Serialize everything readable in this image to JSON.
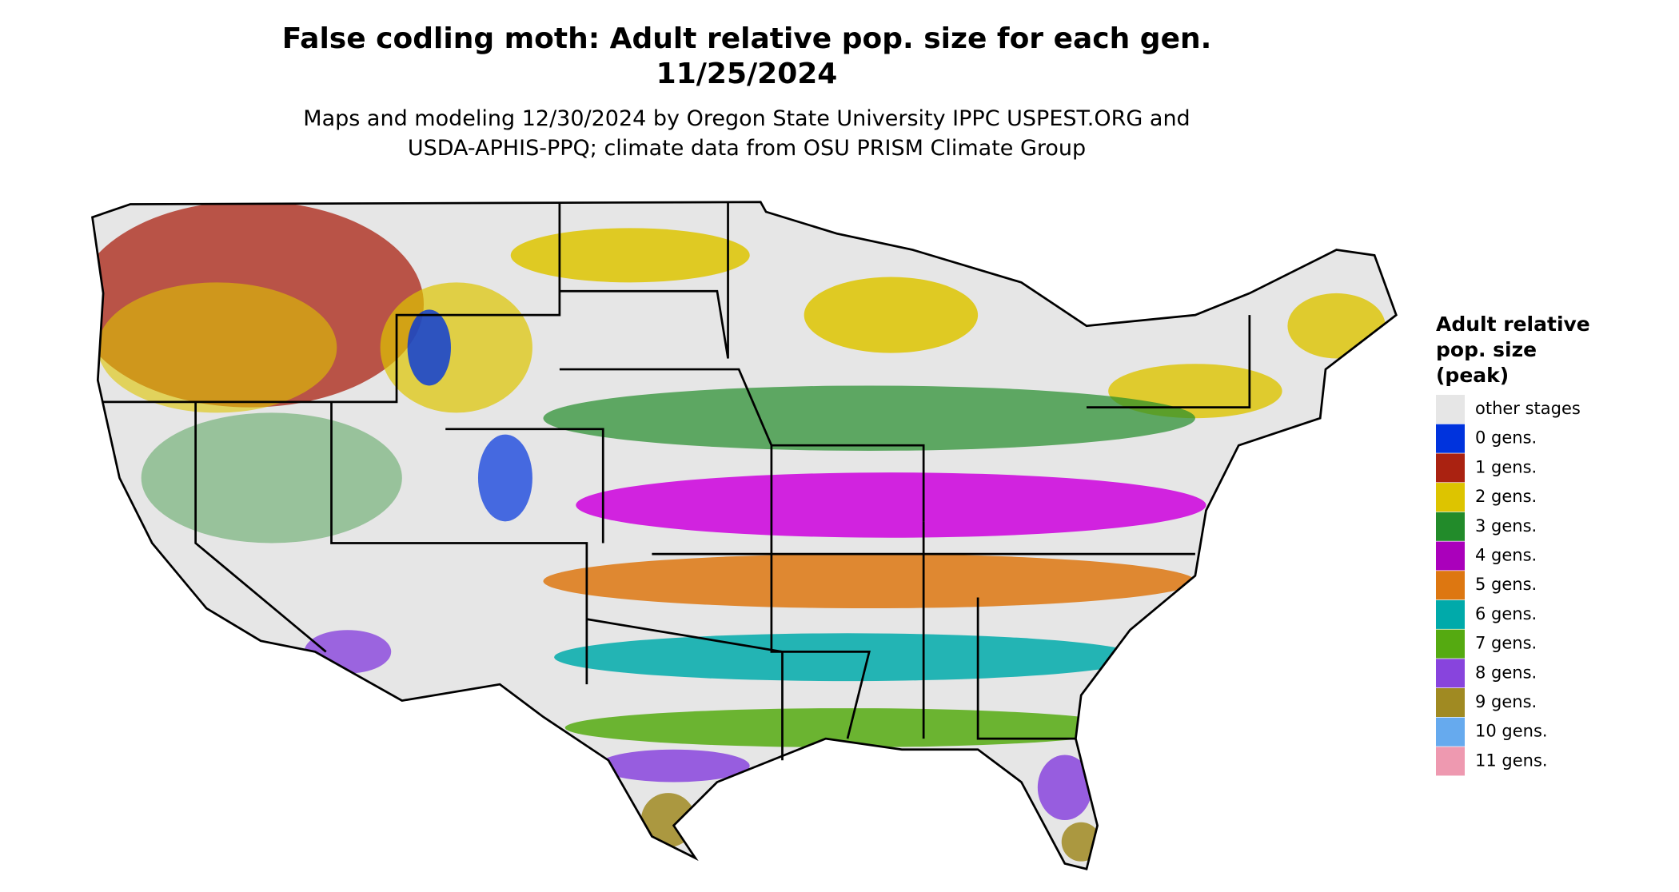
{
  "header": {
    "title_lines": [
      "False codling moth: Adult relative pop. size for each gen.",
      "11/25/2024"
    ],
    "subtitle_lines": [
      "Maps and modeling 12/30/2024 by Oregon State University IPPC USPEST.ORG and",
      "USDA-APHIS-PPQ; climate data from OSU PRISM Climate Group"
    ]
  },
  "legend": {
    "title_lines": [
      "Adult relative",
      "pop. size",
      "(peak)"
    ],
    "items": [
      {
        "label": "other stages",
        "color": "#e6e6e6"
      },
      {
        "label": "0 gens.",
        "color": "#0033dd"
      },
      {
        "label": "1 gens.",
        "color": "#aa2211"
      },
      {
        "label": "2 gens.",
        "color": "#ddc400"
      },
      {
        "label": "3 gens.",
        "color": "#228b2a"
      },
      {
        "label": "4 gens.",
        "color": "#aa00bb"
      },
      {
        "label": "5 gens.",
        "color": "#dd7711"
      },
      {
        "label": "6 gens.",
        "color": "#00aaaa"
      },
      {
        "label": "7 gens.",
        "color": "#55aa11"
      },
      {
        "label": "8 gens.",
        "color": "#8844dd"
      },
      {
        "label": "9 gens.",
        "color": "#a08a22"
      },
      {
        "label": "10 gens.",
        "color": "#66aaee"
      },
      {
        "label": "11 gens.",
        "color": "#ee99b0"
      }
    ]
  }
}
